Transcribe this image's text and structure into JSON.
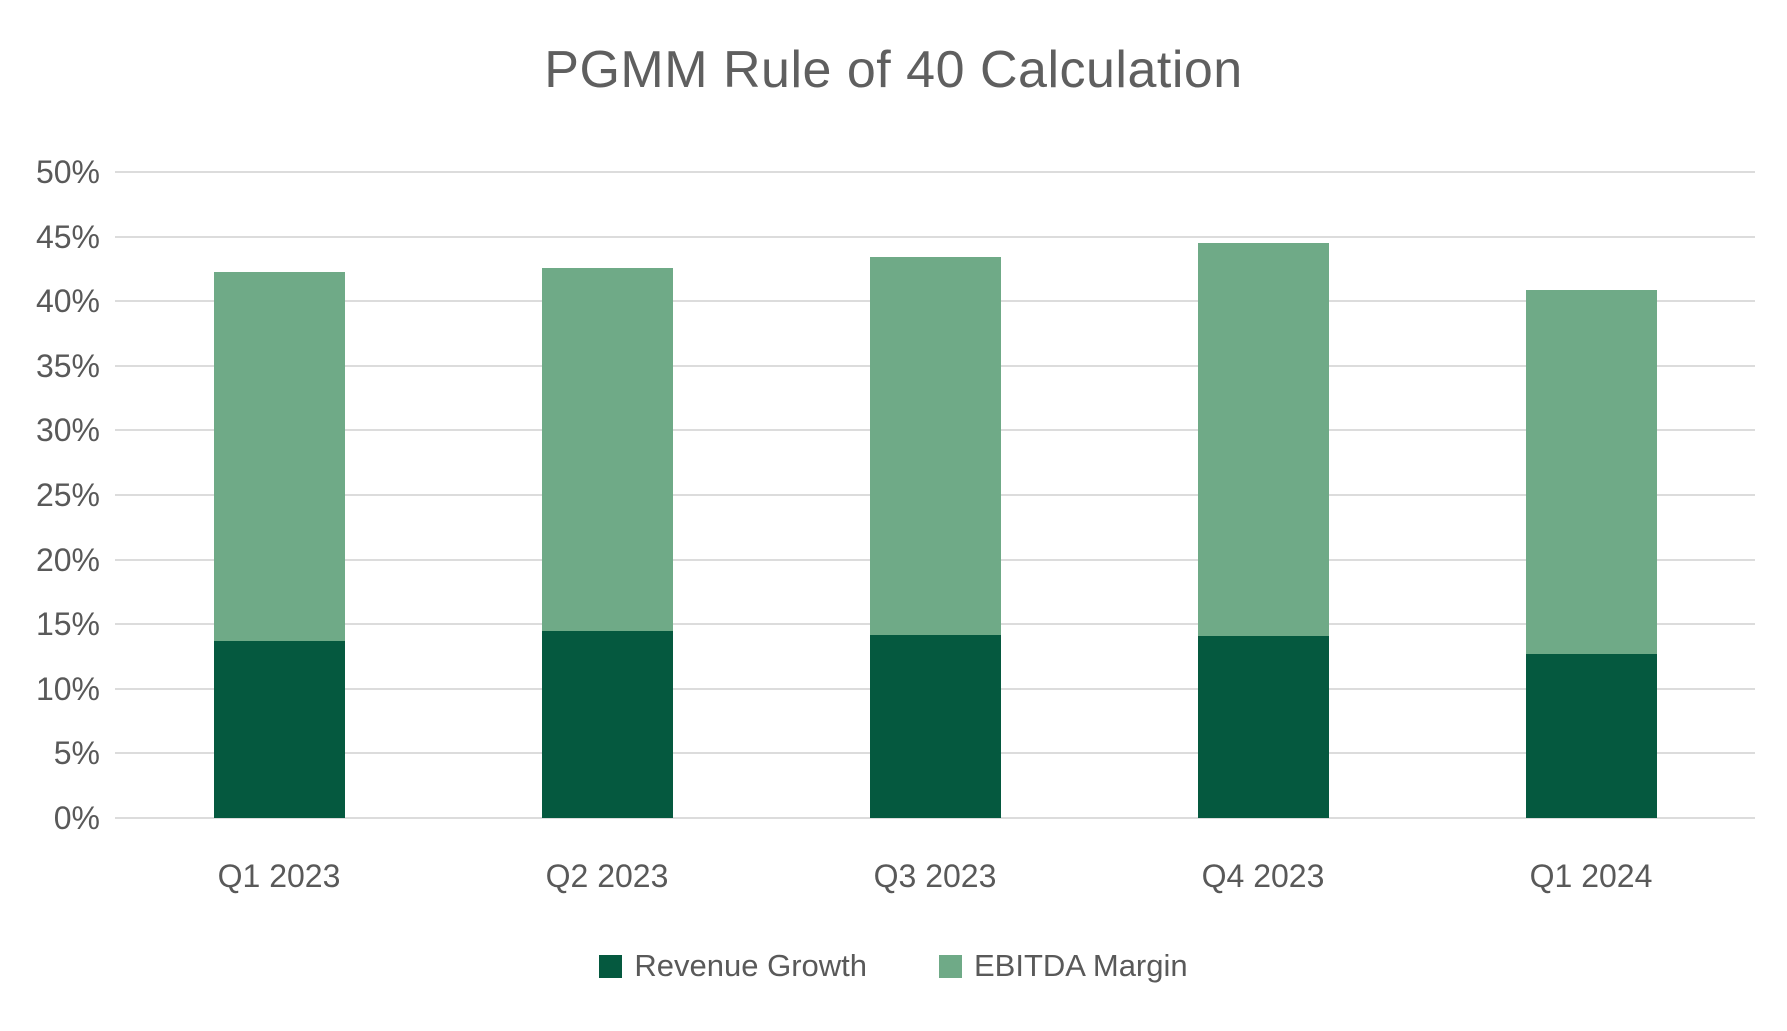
{
  "title": "PGMM Rule of 40 Calculation",
  "chart_data": {
    "type": "bar",
    "stacked": true,
    "title": "PGMM Rule of 40 Calculation",
    "categories": [
      "Q1 2023",
      "Q2 2023",
      "Q3 2023",
      "Q4 2023",
      "Q1 2024"
    ],
    "series": [
      {
        "name": "Revenue Growth",
        "color": "#05593F",
        "values": [
          13.7,
          14.5,
          14.2,
          14.1,
          12.7
        ]
      },
      {
        "name": "EBITDA Margin",
        "color": "#6FAA87",
        "values": [
          28.6,
          28.1,
          29.2,
          30.4,
          28.2
        ]
      }
    ],
    "stack_totals": [
      42.3,
      42.6,
      43.4,
      44.5,
      40.9
    ],
    "xlabel": "",
    "ylabel": "",
    "ylim": [
      0,
      50
    ],
    "ytick_step": 5,
    "ytick_labels": [
      "0%",
      "5%",
      "10%",
      "15%",
      "20%",
      "25%",
      "30%",
      "35%",
      "40%",
      "45%",
      "50%"
    ],
    "grid": true,
    "legend_position": "bottom"
  },
  "colors": {
    "background": "#FFFFFF",
    "title_text": "#5F5F5F",
    "axis_text": "#595959",
    "gridline": "#DCDCDC",
    "series_dark_green": "#05593F",
    "series_light_green": "#6FAA87"
  }
}
